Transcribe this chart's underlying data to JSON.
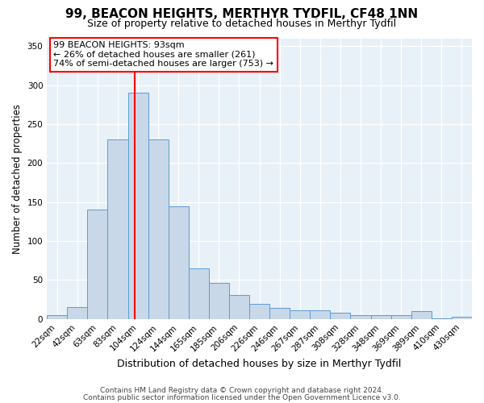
{
  "title": "99, BEACON HEIGHTS, MERTHYR TYDFIL, CF48 1NN",
  "subtitle": "Size of property relative to detached houses in Merthyr Tydfil",
  "xlabel": "Distribution of detached houses by size in Merthyr Tydfil",
  "ylabel": "Number of detached properties",
  "footnote1": "Contains HM Land Registry data © Crown copyright and database right 2024.",
  "footnote2": "Contains public sector information licensed under the Open Government Licence v3.0.",
  "bar_labels": [
    "22sqm",
    "42sqm",
    "63sqm",
    "83sqm",
    "104sqm",
    "124sqm",
    "144sqm",
    "165sqm",
    "185sqm",
    "206sqm",
    "226sqm",
    "246sqm",
    "267sqm",
    "287sqm",
    "308sqm",
    "328sqm",
    "348sqm",
    "369sqm",
    "389sqm",
    "410sqm",
    "430sqm"
  ],
  "bar_values": [
    5,
    15,
    140,
    230,
    290,
    230,
    145,
    65,
    46,
    31,
    19,
    14,
    11,
    11,
    8,
    5,
    5,
    5,
    10,
    1,
    3
  ],
  "bar_color": "#c8d8e8",
  "bar_edge_color": "#5b9bd5",
  "vline_x": 3.82,
  "vline_color": "red",
  "annotation_text": "99 BEACON HEIGHTS: 93sqm\n← 26% of detached houses are smaller (261)\n74% of semi-detached houses are larger (753) →",
  "annotation_box_color": "white",
  "annotation_box_edge": "red",
  "ylim": [
    0,
    360
  ],
  "yticks": [
    0,
    50,
    100,
    150,
    200,
    250,
    300,
    350
  ],
  "background_color": "#e8f0f8",
  "grid_color": "white",
  "title_fontsize": 11,
  "subtitle_fontsize": 9,
  "xlabel_fontsize": 9,
  "ylabel_fontsize": 8.5,
  "tick_fontsize": 7.5,
  "annotation_fontsize": 8,
  "footnote_fontsize": 6.5
}
